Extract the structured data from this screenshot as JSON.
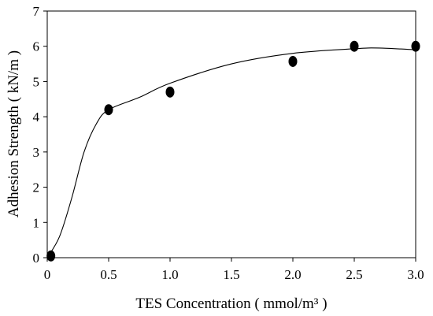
{
  "chart_data": {
    "type": "scatter",
    "xlabel": "TES Concentration ( mmol/m³ )",
    "ylabel": "Adhesion Strength ( kN/m )",
    "xlim": [
      0,
      3.0
    ],
    "ylim": [
      0,
      7
    ],
    "x_ticks": [
      {
        "value": 0,
        "label": "0"
      },
      {
        "value": 0.5,
        "label": "0.5"
      },
      {
        "value": 1.0,
        "label": "1.0"
      },
      {
        "value": 1.5,
        "label": "1.5"
      },
      {
        "value": 2.0,
        "label": "2.0"
      },
      {
        "value": 2.5,
        "label": "2.5"
      },
      {
        "value": 3.0,
        "label": "3.0"
      }
    ],
    "y_ticks": [
      {
        "value": 0,
        "label": "0"
      },
      {
        "value": 1,
        "label": "1"
      },
      {
        "value": 2,
        "label": "2"
      },
      {
        "value": 3,
        "label": "3"
      },
      {
        "value": 4,
        "label": "4"
      },
      {
        "value": 5,
        "label": "5"
      },
      {
        "value": 6,
        "label": "6"
      },
      {
        "value": 7,
        "label": "7"
      }
    ],
    "grid": false,
    "legend": "none",
    "series": [
      {
        "kind": "points",
        "marker": "filled-ellipse",
        "color": "#000000",
        "points": [
          {
            "x": 0.03,
            "y": 0.05
          },
          {
            "x": 0.5,
            "y": 4.2
          },
          {
            "x": 1.0,
            "y": 4.7
          },
          {
            "x": 2.0,
            "y": 5.57
          },
          {
            "x": 2.5,
            "y": 6.0
          },
          {
            "x": 3.0,
            "y": 6.0
          }
        ]
      },
      {
        "kind": "fit-curve",
        "color": "#000000",
        "points": [
          {
            "x": 0.0,
            "y": 0.0
          },
          {
            "x": 0.1,
            "y": 0.6
          },
          {
            "x": 0.2,
            "y": 1.7
          },
          {
            "x": 0.3,
            "y": 3.0
          },
          {
            "x": 0.4,
            "y": 3.8
          },
          {
            "x": 0.5,
            "y": 4.2
          },
          {
            "x": 0.75,
            "y": 4.55
          },
          {
            "x": 1.0,
            "y": 4.95
          },
          {
            "x": 1.5,
            "y": 5.5
          },
          {
            "x": 2.0,
            "y": 5.8
          },
          {
            "x": 2.5,
            "y": 5.93
          },
          {
            "x": 2.7,
            "y": 5.95
          },
          {
            "x": 3.0,
            "y": 5.9
          }
        ]
      }
    ]
  }
}
